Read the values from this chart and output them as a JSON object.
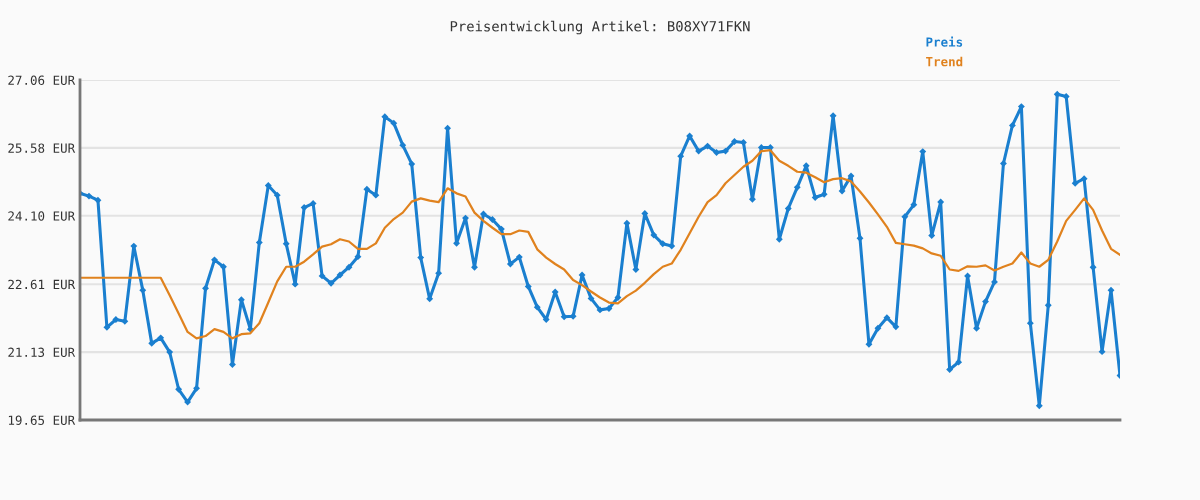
{
  "chart_data": {
    "type": "line",
    "title": "Preisentwicklung Artikel: B08XY71FKN",
    "categories": [
      null,
      null,
      null,
      null,
      null,
      null,
      null,
      null,
      null,
      null,
      null,
      null,
      null,
      null,
      null,
      null,
      null,
      null,
      null,
      null,
      null,
      null,
      null,
      null,
      null,
      null,
      null,
      null,
      null,
      null,
      null,
      null,
      null,
      null,
      null,
      null,
      null,
      null,
      null,
      null,
      null,
      null,
      null,
      null,
      null,
      null,
      null,
      null,
      null,
      null,
      null,
      null,
      null,
      null,
      null,
      null,
      null,
      null,
      null,
      null,
      null,
      null,
      null,
      null,
      null,
      null,
      null,
      null,
      null,
      null,
      null,
      null,
      null,
      null,
      null,
      null,
      null,
      null,
      null,
      null,
      null,
      null,
      null,
      null,
      null,
      null,
      null,
      null,
      null,
      null,
      null,
      null,
      null,
      null,
      null,
      null,
      null,
      null,
      null,
      null,
      null,
      null,
      null,
      null,
      null,
      null,
      null,
      null,
      null,
      null,
      null,
      null,
      null,
      null,
      null,
      null,
      null
    ],
    "series": [
      {
        "name": "Preis",
        "color": "#1a7fcf",
        "marker": "diamond",
        "values": [
          24.59,
          24.53,
          24.44,
          21.67,
          21.84,
          21.8,
          23.44,
          22.48,
          21.32,
          21.44,
          21.13,
          20.32,
          20.04,
          20.34,
          22.52,
          23.14,
          22.99,
          20.86,
          22.27,
          21.63,
          23.52,
          24.76,
          24.55,
          23.49,
          22.61,
          24.28,
          24.37,
          22.79,
          22.63,
          22.81,
          22.98,
          23.21,
          24.68,
          24.55,
          26.26,
          26.12,
          25.64,
          25.23,
          23.19,
          22.29,
          22.85,
          26.01,
          23.5,
          24.05,
          22.98,
          24.14,
          24.02,
          23.81,
          23.05,
          23.2,
          22.56,
          22.11,
          21.84,
          22.44,
          21.9,
          21.91,
          22.81,
          22.3,
          22.05,
          22.08,
          22.32,
          23.94,
          22.93,
          24.15,
          23.68,
          23.49,
          23.44,
          25.4,
          25.84,
          25.51,
          25.62,
          25.48,
          25.51,
          25.72,
          25.7,
          24.46,
          25.59,
          25.59,
          23.59,
          24.26,
          24.72,
          25.19,
          24.5,
          24.57,
          26.28,
          24.64,
          24.97,
          23.61,
          21.3,
          21.65,
          21.88,
          21.68,
          24.08,
          24.34,
          25.5,
          23.67,
          24.4,
          20.75,
          20.91,
          22.79,
          21.65,
          22.23,
          22.66,
          25.24,
          26.07,
          26.48,
          21.76,
          19.96,
          22.15,
          26.75,
          26.7,
          24.81,
          24.91,
          22.98,
          21.14,
          22.48,
          20.62
        ]
      },
      {
        "name": "Trend",
        "color": "#e0821e",
        "marker": "none",
        "values": [
          22.75,
          22.75,
          22.75,
          22.75,
          22.75,
          22.75,
          22.75,
          22.75,
          22.75,
          22.75,
          22.37,
          21.97,
          21.57,
          21.43,
          21.48,
          21.63,
          21.57,
          21.43,
          21.52,
          21.54,
          21.76,
          22.21,
          22.67,
          22.99,
          22.99,
          23.1,
          23.26,
          23.43,
          23.48,
          23.59,
          23.54,
          23.38,
          23.38,
          23.5,
          23.84,
          24.03,
          24.17,
          24.41,
          24.48,
          24.43,
          24.4,
          24.7,
          24.59,
          24.52,
          24.17,
          23.99,
          23.84,
          23.7,
          23.7,
          23.78,
          23.75,
          23.37,
          23.19,
          23.05,
          22.93,
          22.7,
          22.59,
          22.45,
          22.32,
          22.21,
          22.19,
          22.35,
          22.47,
          22.64,
          22.83,
          22.99,
          23.06,
          23.36,
          23.72,
          24.08,
          24.4,
          24.55,
          24.81,
          24.99,
          25.17,
          25.3,
          25.51,
          25.53,
          25.3,
          25.19,
          25.06,
          25.04,
          24.94,
          24.83,
          24.9,
          24.92,
          24.85,
          24.63,
          24.39,
          24.13,
          23.86,
          23.51,
          23.48,
          23.45,
          23.39,
          23.28,
          23.23,
          22.93,
          22.9,
          23.0,
          22.99,
          23.02,
          22.91,
          22.99,
          23.06,
          23.3,
          23.06,
          22.99,
          23.14,
          23.54,
          23.99,
          24.23,
          24.48,
          24.23,
          23.78,
          23.38,
          23.25
        ]
      }
    ],
    "ylim": [
      19.65,
      27.06
    ],
    "yticks": [
      {
        "value": 19.65,
        "label": "19.65 EUR"
      },
      {
        "value": 21.13,
        "label": "21.13 EUR"
      },
      {
        "value": 22.61,
        "label": "22.61 EUR"
      },
      {
        "value": 24.1,
        "label": "24.10 EUR"
      },
      {
        "value": 25.58,
        "label": "25.58 EUR"
      },
      {
        "value": 27.06,
        "label": "27.06 EUR"
      }
    ],
    "grid": "y",
    "legend": "top right",
    "line_style": "solid"
  }
}
